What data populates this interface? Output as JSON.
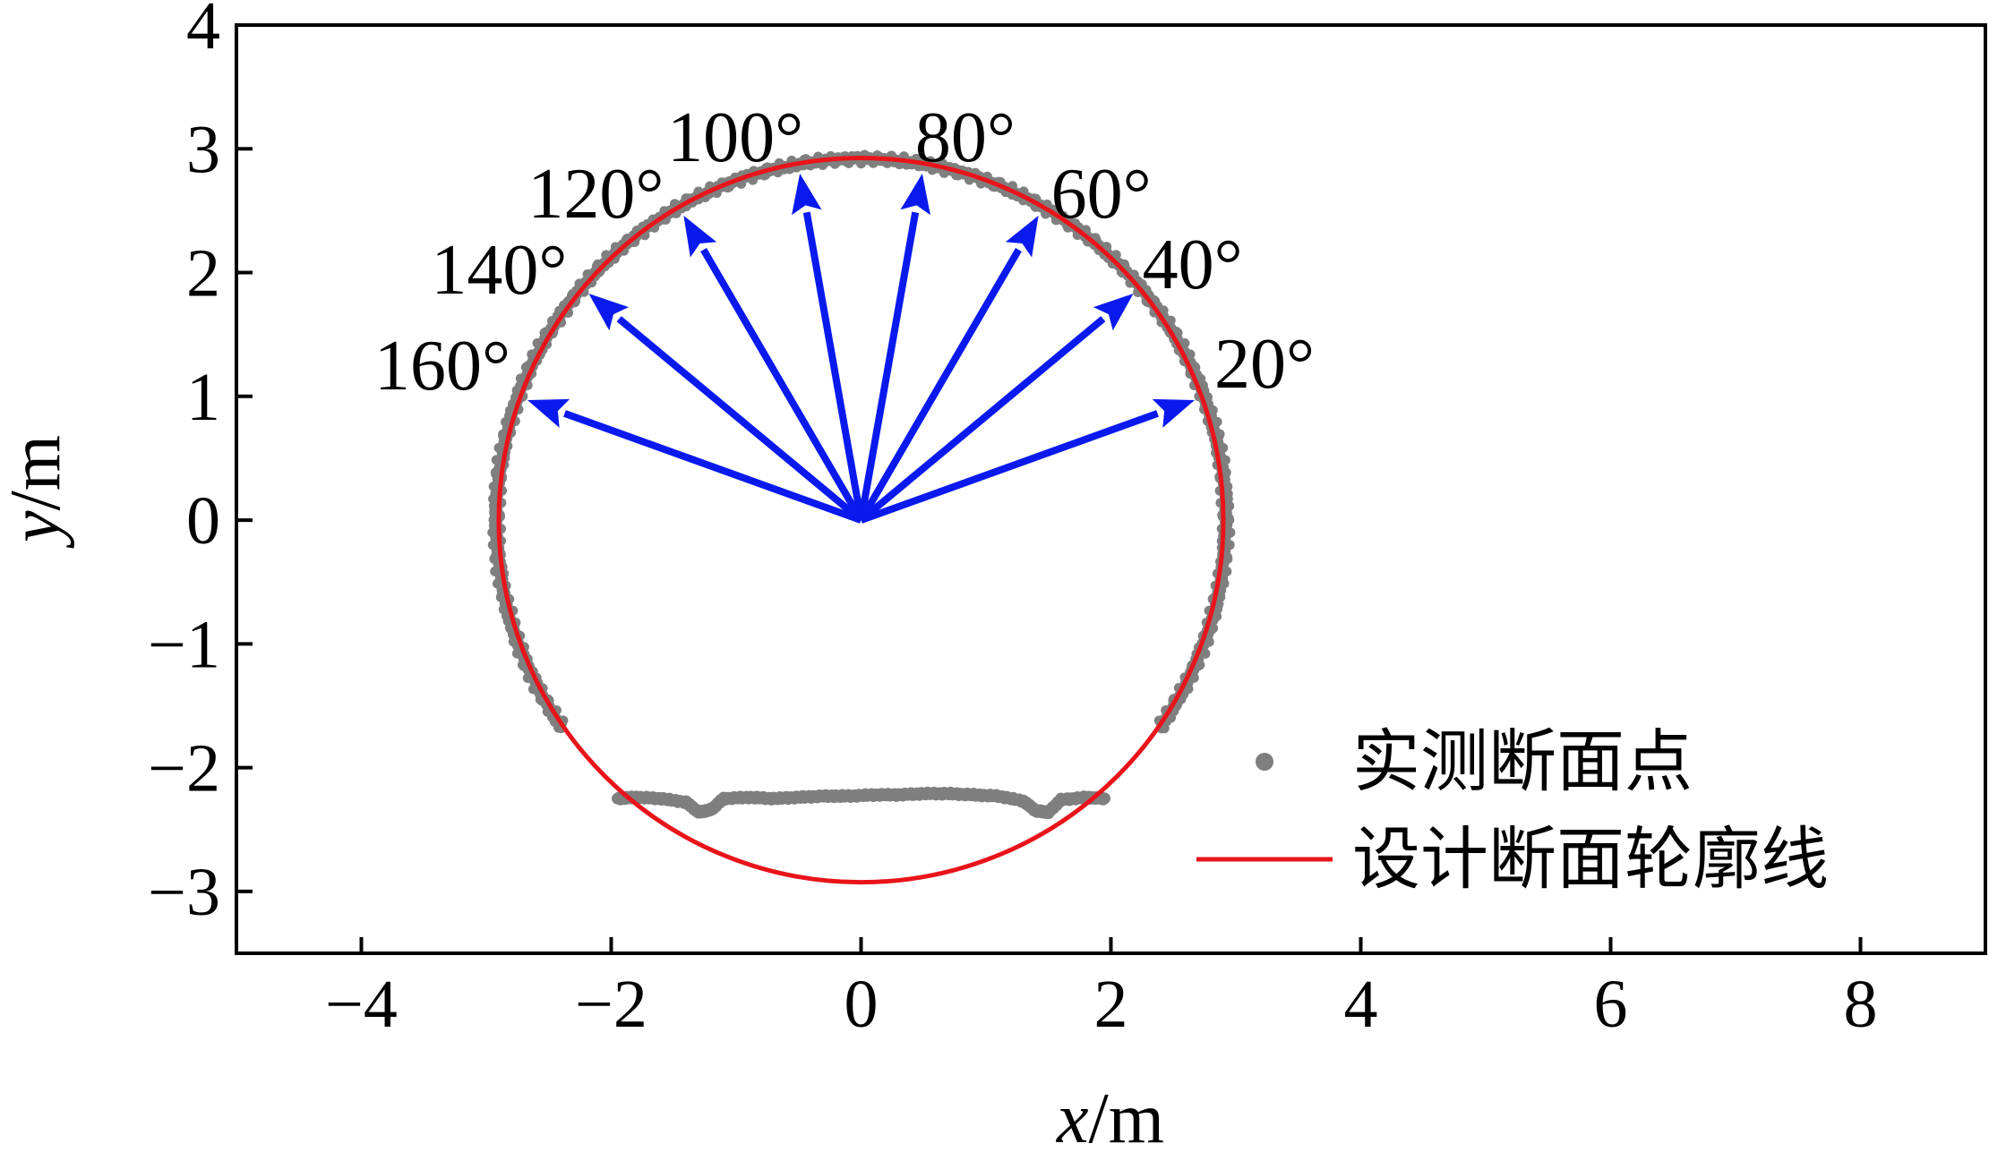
{
  "chart_data": {
    "type": "scatter",
    "xlabel": {
      "var": "x",
      "unit": "/m"
    },
    "ylabel": {
      "var": "y",
      "unit": "/m"
    },
    "xlim": [
      -5,
      9
    ],
    "ylim": [
      -3.5,
      4
    ],
    "xticks": [
      -4,
      -2,
      0,
      2,
      4,
      6,
      8
    ],
    "yticks": [
      -3,
      -2,
      -1,
      0,
      1,
      2,
      3,
      4
    ],
    "xtick_labels": [
      "−4",
      "−2",
      "0",
      "2",
      "4",
      "6",
      "8"
    ],
    "ytick_labels": [
      "−3",
      "−2",
      "−1",
      "0",
      "1",
      "2",
      "3",
      "4"
    ],
    "grid": false,
    "legend": {
      "position": "bottom-right",
      "entries": [
        {
          "label": "实测断面点",
          "marker": "dot",
          "color": "#7f7f7f"
        },
        {
          "label": "设计断面轮廓线",
          "marker": "line",
          "color": "#e8141a"
        }
      ]
    },
    "design_profile": {
      "shape": "circle",
      "center": [
        0,
        0
      ],
      "radius": 2.9,
      "color": "#e8141a"
    },
    "measured_points": {
      "color": "#7f7f7f",
      "arc": {
        "center": [
          0,
          0
        ],
        "radius": 2.92,
        "from_deg": -145,
        "to_deg": -35
      },
      "invert": [
        [
          -1.95,
          -2.25
        ],
        [
          -1.8,
          -2.24
        ],
        [
          -1.6,
          -2.25
        ],
        [
          -1.4,
          -2.28
        ],
        [
          -1.3,
          -2.36
        ],
        [
          -1.2,
          -2.34
        ],
        [
          -1.1,
          -2.25
        ],
        [
          -0.9,
          -2.24
        ],
        [
          -0.7,
          -2.25
        ],
        [
          -0.5,
          -2.24
        ],
        [
          -0.3,
          -2.23
        ],
        [
          -0.1,
          -2.23
        ],
        [
          0.1,
          -2.22
        ],
        [
          0.3,
          -2.22
        ],
        [
          0.5,
          -2.21
        ],
        [
          0.7,
          -2.21
        ],
        [
          0.9,
          -2.22
        ],
        [
          1.1,
          -2.23
        ],
        [
          1.3,
          -2.27
        ],
        [
          1.4,
          -2.35
        ],
        [
          1.5,
          -2.36
        ],
        [
          1.6,
          -2.26
        ],
        [
          1.8,
          -2.24
        ],
        [
          1.95,
          -2.25
        ]
      ]
    },
    "rays": {
      "origin": [
        0,
        0
      ],
      "color": "#0a1aee",
      "items": [
        {
          "angle": 20,
          "label": "20°",
          "tip": [
            2.67,
            0.97
          ]
        },
        {
          "angle": 40,
          "label": "40°",
          "tip": [
            2.18,
            1.83
          ]
        },
        {
          "angle": 60,
          "label": "60°",
          "tip": [
            1.42,
            2.46
          ]
        },
        {
          "angle": 80,
          "label": "80°",
          "tip": [
            0.49,
            2.8
          ]
        },
        {
          "angle": 100,
          "label": "100°",
          "tip": [
            -0.49,
            2.8
          ]
        },
        {
          "angle": 120,
          "label": "120°",
          "tip": [
            -1.42,
            2.46
          ]
        },
        {
          "angle": 140,
          "label": "140°",
          "tip": [
            -2.18,
            1.83
          ]
        },
        {
          "angle": 160,
          "label": "160°",
          "tip": [
            -2.67,
            0.97
          ]
        }
      ]
    }
  }
}
